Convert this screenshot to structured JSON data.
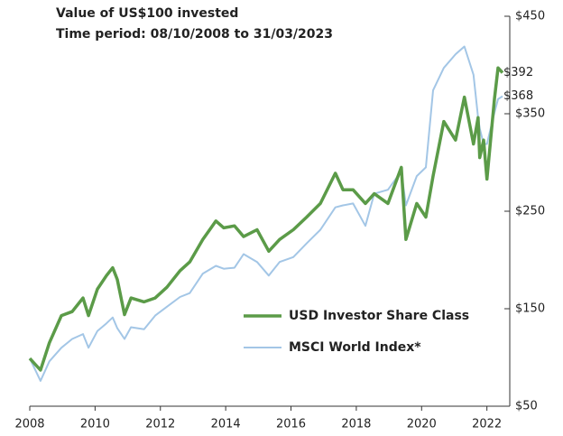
{
  "chart_data": {
    "type": "line",
    "title": "Value of US$100 invested",
    "subtitle": "Time period: 08/10/2008 to 31/03/2023",
    "x": [
      2008.0,
      2008.33,
      2008.6,
      2008.97,
      2009.3,
      2009.63,
      2009.8,
      2010.07,
      2010.35,
      2010.54,
      2010.68,
      2010.9,
      2011.1,
      2011.5,
      2011.84,
      2012.2,
      2012.6,
      2012.9,
      2013.3,
      2013.7,
      2013.94,
      2014.27,
      2014.55,
      2014.96,
      2015.32,
      2015.65,
      2016.07,
      2016.48,
      2016.9,
      2017.36,
      2017.59,
      2017.9,
      2018.28,
      2018.55,
      2018.97,
      2019.38,
      2019.52,
      2019.85,
      2020.13,
      2020.35,
      2020.68,
      2021.04,
      2021.31,
      2021.59,
      2021.73,
      2021.78,
      2021.9,
      2022.0,
      2022.23,
      2022.34,
      2022.48
    ],
    "series": [
      {
        "name": "USD Investor Share Class",
        "color": "#5b9b48",
        "values": [
          99,
          87,
          115,
          143,
          147,
          161,
          143,
          170,
          184,
          192,
          180,
          144,
          161,
          157,
          161,
          172,
          189,
          198,
          221,
          240,
          233,
          235,
          224,
          231,
          209,
          221,
          231,
          244,
          258,
          289,
          272,
          272,
          258,
          268,
          258,
          295,
          221,
          258,
          244,
          286,
          342,
          323,
          367,
          319,
          346,
          305,
          323,
          283,
          365,
          397,
          392
        ]
      },
      {
        "name": "MSCI World Index*",
        "color": "#a3c6e6",
        "values": [
          99,
          76,
          96,
          110,
          119,
          124,
          110,
          127,
          135,
          141,
          130,
          119,
          131,
          129,
          143,
          152,
          162,
          166,
          186,
          194,
          191,
          192,
          206,
          198,
          184,
          198,
          203,
          217,
          231,
          254,
          256,
          258,
          235,
          268,
          272,
          291,
          256,
          286,
          295,
          374,
          397,
          411,
          419,
          390,
          346,
          335,
          319,
          319,
          351,
          365,
          368
        ]
      }
    ],
    "annotations": [
      {
        "text": "$392",
        "value": 392,
        "color": "#5b9b48"
      },
      {
        "text": "$368",
        "value": 368,
        "color": "#4f7fc0"
      }
    ],
    "xlim": [
      2008,
      2022.7
    ],
    "xticks": [
      2008,
      2010,
      2012,
      2014,
      2016,
      2018,
      2020,
      2022
    ],
    "ylim": [
      50,
      450
    ],
    "yticks": [
      {
        "value": 50,
        "label": "$50"
      },
      {
        "value": 150,
        "label": "$150"
      },
      {
        "value": 250,
        "label": "$250"
      },
      {
        "value": 350,
        "label": "$350"
      },
      {
        "value": 450,
        "label": "$450"
      }
    ],
    "y_axis_side": "right",
    "grid": false,
    "legend": "lower right"
  }
}
